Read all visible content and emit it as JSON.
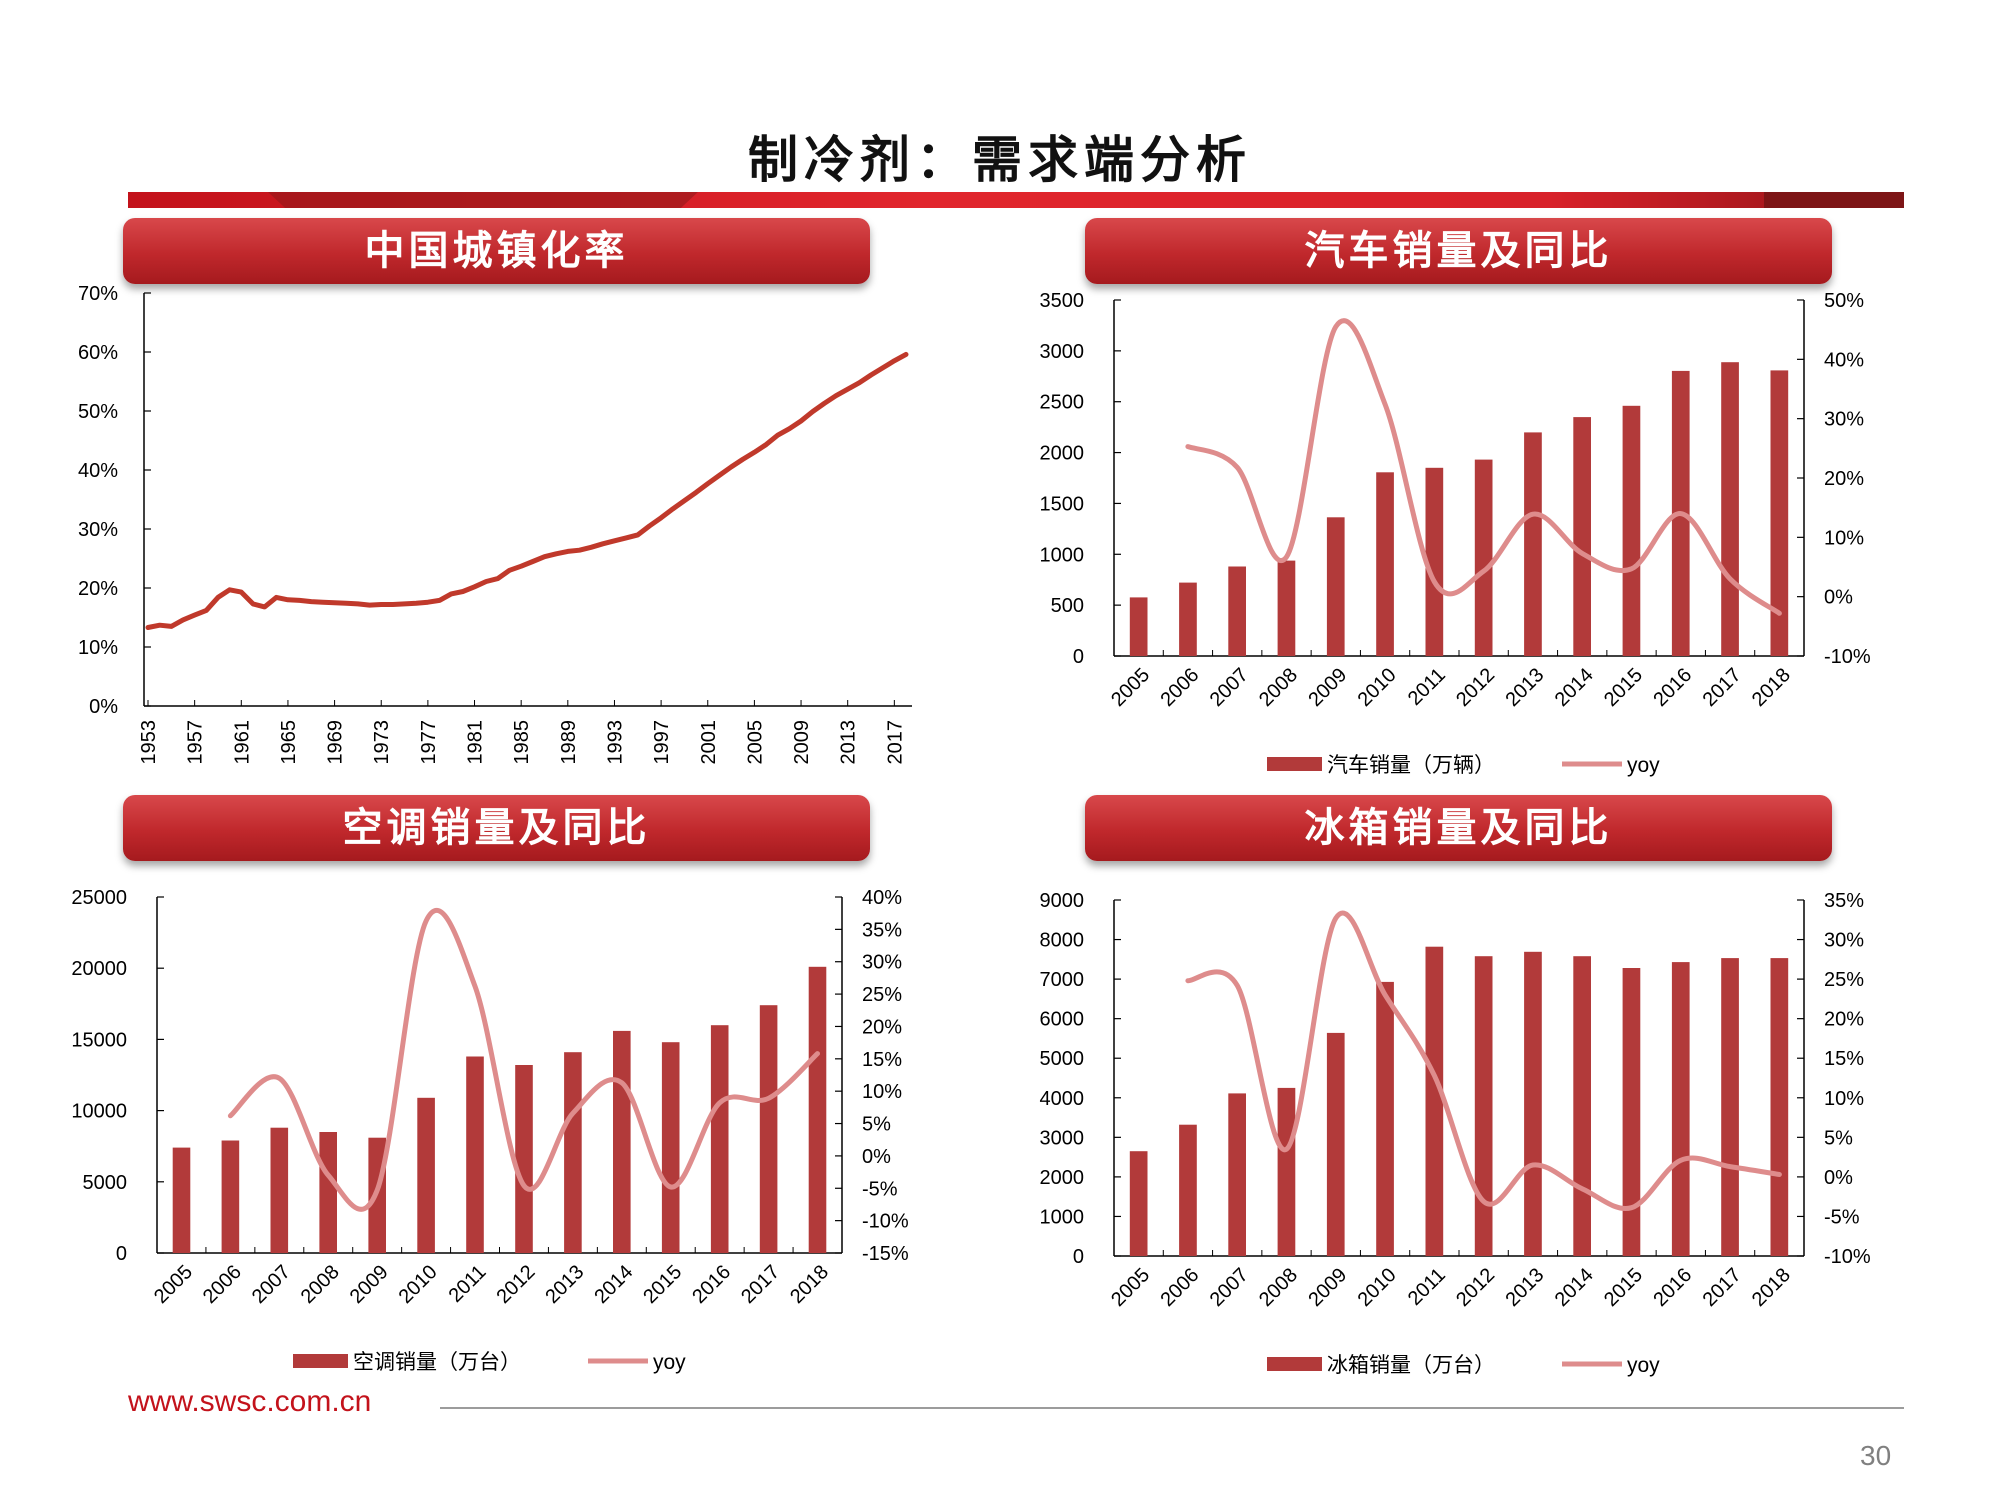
{
  "slide_title": "制冷剂：需求端分析",
  "footer": {
    "url": "www.swsc.com.cn",
    "page_number": "30"
  },
  "panels": [
    {
      "title": "中国城镇化率"
    },
    {
      "title": "汽车销量及同比"
    },
    {
      "title": "空调销量及同比"
    },
    {
      "title": "冰箱销量及同比"
    }
  ],
  "colors": {
    "bar": "#b23a3a",
    "line_urbanization": "#c0392b",
    "line_yoy": "#de8c8c",
    "header": "#c0282c"
  },
  "chart_data": [
    {
      "type": "line",
      "title": "中国城镇化率",
      "x_tick_labels": [
        "1953",
        "1957",
        "1961",
        "1965",
        "1969",
        "1973",
        "1977",
        "1981",
        "1985",
        "1989",
        "1993",
        "1997",
        "2001",
        "2005",
        "2009",
        "2013",
        "2017"
      ],
      "y_ticks": [
        "0%",
        "10%",
        "20%",
        "30%",
        "40%",
        "50%",
        "60%",
        "70%"
      ],
      "ylim": [
        0,
        70
      ],
      "x": [
        1953,
        1954,
        1955,
        1956,
        1957,
        1958,
        1959,
        1960,
        1961,
        1962,
        1963,
        1964,
        1965,
        1966,
        1967,
        1968,
        1969,
        1970,
        1971,
        1972,
        1973,
        1974,
        1975,
        1976,
        1977,
        1978,
        1979,
        1980,
        1981,
        1982,
        1983,
        1984,
        1985,
        1986,
        1987,
        1988,
        1989,
        1990,
        1991,
        1992,
        1993,
        1994,
        1995,
        1996,
        1997,
        1998,
        1999,
        2000,
        2001,
        2002,
        2003,
        2004,
        2005,
        2006,
        2007,
        2008,
        2009,
        2010,
        2011,
        2012,
        2013,
        2014,
        2015,
        2016,
        2017,
        2018
      ],
      "series": [
        {
          "values": [
            13.3,
            13.7,
            13.5,
            14.6,
            15.4,
            16.2,
            18.4,
            19.7,
            19.3,
            17.3,
            16.8,
            18.4,
            18.0,
            17.9,
            17.7,
            17.6,
            17.5,
            17.4,
            17.3,
            17.1,
            17.2,
            17.2,
            17.3,
            17.4,
            17.6,
            17.9,
            19.0,
            19.4,
            20.2,
            21.1,
            21.6,
            23.0,
            23.7,
            24.5,
            25.3,
            25.8,
            26.2,
            26.4,
            26.9,
            27.5,
            28.0,
            28.5,
            29.0,
            30.5,
            31.9,
            33.4,
            34.8,
            36.2,
            37.7,
            39.1,
            40.5,
            41.8,
            43.0,
            44.3,
            45.9,
            47.0,
            48.3,
            49.9,
            51.3,
            52.6,
            53.7,
            54.8,
            56.1,
            57.3,
            58.5,
            59.6
          ]
        }
      ]
    },
    {
      "type": "bar+line",
      "title": "汽车销量及同比",
      "categories": [
        "2005",
        "2006",
        "2007",
        "2008",
        "2009",
        "2010",
        "2011",
        "2012",
        "2013",
        "2014",
        "2015",
        "2016",
        "2017",
        "2018"
      ],
      "y_left_ticks": [
        "0",
        "500",
        "1000",
        "1500",
        "2000",
        "2500",
        "3000",
        "3500"
      ],
      "y_right_ticks": [
        "-10%",
        "0%",
        "10%",
        "20%",
        "30%",
        "40%",
        "50%"
      ],
      "ylim_left": [
        0,
        3500
      ],
      "ylim_right": [
        -10,
        50
      ],
      "series": [
        {
          "name": "汽车销量（万辆）",
          "type": "bar",
          "axis": "left",
          "values": [
            576,
            722,
            880,
            938,
            1364,
            1806,
            1850,
            1931,
            2198,
            2349,
            2460,
            2803,
            2888,
            2808
          ]
        },
        {
          "name": "yoy",
          "type": "line",
          "axis": "right",
          "values": [
            null,
            25.3,
            21.8,
            6.7,
            45.5,
            32.4,
            2.5,
            4.3,
            13.9,
            7.3,
            4.7,
            14.0,
            3.0,
            -2.8
          ]
        }
      ]
    },
    {
      "type": "bar+line",
      "title": "空调销量及同比",
      "categories": [
        "2005",
        "2006",
        "2007",
        "2008",
        "2009",
        "2010",
        "2011",
        "2012",
        "2013",
        "2014",
        "2015",
        "2016",
        "2017",
        "2018"
      ],
      "y_left_ticks": [
        "0",
        "5000",
        "10000",
        "15000",
        "20000",
        "25000"
      ],
      "y_right_ticks": [
        "-15%",
        "-10%",
        "-5%",
        "0%",
        "5%",
        "10%",
        "15%",
        "20%",
        "25%",
        "30%",
        "35%",
        "40%"
      ],
      "ylim_left": [
        0,
        25000
      ],
      "ylim_right": [
        -15,
        40
      ],
      "series": [
        {
          "name": "空调销量（万台）",
          "type": "bar",
          "axis": "left",
          "values": [
            7400,
            7900,
            8800,
            8500,
            8100,
            10900,
            13800,
            13200,
            14100,
            15600,
            14800,
            16000,
            17400,
            20100
          ]
        },
        {
          "name": "yoy",
          "type": "line",
          "axis": "right",
          "values": [
            null,
            6.2,
            12.0,
            -3.0,
            -5.3,
            36.3,
            26.2,
            -4.6,
            6.6,
            11.3,
            -4.8,
            8.2,
            8.9,
            15.8
          ]
        }
      ]
    },
    {
      "type": "bar+line",
      "title": "冰箱销量及同比",
      "categories": [
        "2005",
        "2006",
        "2007",
        "2008",
        "2009",
        "2010",
        "2011",
        "2012",
        "2013",
        "2014",
        "2015",
        "2016",
        "2017",
        "2018"
      ],
      "y_left_ticks": [
        "0",
        "1000",
        "2000",
        "3000",
        "4000",
        "5000",
        "6000",
        "7000",
        "8000",
        "9000"
      ],
      "y_right_ticks": [
        "-10%",
        "-5%",
        "0%",
        "5%",
        "10%",
        "15%",
        "20%",
        "25%",
        "30%",
        "35%"
      ],
      "ylim_left": [
        0,
        9000
      ],
      "ylim_right": [
        -10,
        35
      ],
      "series": [
        {
          "name": "冰箱销量（万台）",
          "type": "bar",
          "axis": "left",
          "values": [
            2650,
            3320,
            4110,
            4250,
            5640,
            6930,
            7820,
            7580,
            7690,
            7580,
            7280,
            7430,
            7530,
            7530
          ]
        },
        {
          "name": "yoy",
          "type": "line",
          "axis": "right",
          "values": [
            null,
            24.8,
            24.2,
            3.5,
            32.7,
            23.0,
            12.8,
            -3.1,
            1.5,
            -1.5,
            -3.9,
            2.1,
            1.3,
            0.3
          ]
        }
      ]
    }
  ]
}
